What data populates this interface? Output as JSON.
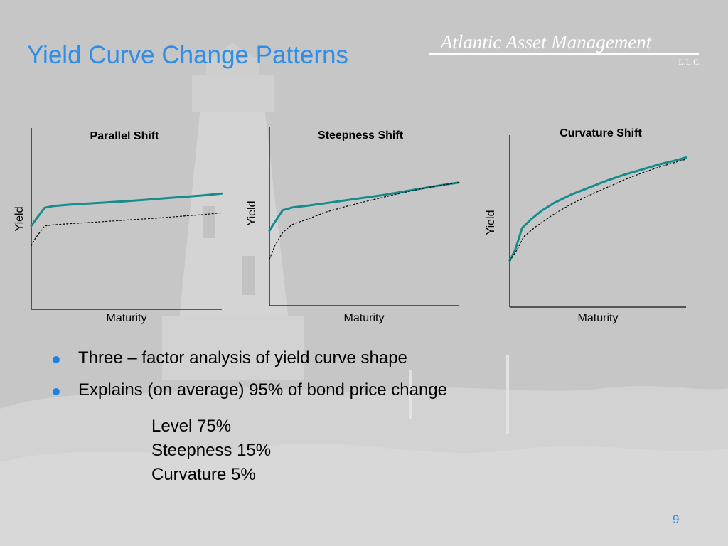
{
  "slide": {
    "title": "Yield Curve Change Patterns",
    "page_number": "9",
    "accent_color": "#2f8ee8"
  },
  "logo": {
    "name": "Atlantic Asset Management",
    "suffix": "L.L.C."
  },
  "bullets": [
    {
      "text": "Three – factor analysis of yield curve shape",
      "icon": "bullet-dot-icon"
    },
    {
      "text": "Explains (on average) 95% of bond price change",
      "icon": "bullet-dot-icon"
    }
  ],
  "sub_items": [
    {
      "text": "Level 75%"
    },
    {
      "text": "Steepness 15%"
    },
    {
      "text": "Curvature 5%"
    }
  ],
  "chart_data": [
    {
      "type": "line",
      "title": "Parallel Shift",
      "xlabel": "Maturity",
      "ylabel": "Yield",
      "grid": false,
      "ylim": [
        0,
        100
      ],
      "series": [
        {
          "style": "solid",
          "color": "#168c8c",
          "values": [
            [
              0,
              46
            ],
            [
              2,
              49
            ],
            [
              7,
              56
            ],
            [
              12,
              57
            ],
            [
              20,
              57.7
            ],
            [
              30,
              58.3
            ],
            [
              40,
              59
            ],
            [
              50,
              59.6
            ],
            [
              60,
              60.4
            ],
            [
              70,
              61.2
            ],
            [
              80,
              62
            ],
            [
              90,
              62.8
            ],
            [
              100,
              63.8
            ]
          ]
        },
        {
          "style": "dotted",
          "color": "#000000",
          "values": [
            [
              0,
              35
            ],
            [
              2,
              39
            ],
            [
              7,
              46
            ],
            [
              12,
              46.6
            ],
            [
              20,
              47.2
            ],
            [
              30,
              47.8
            ],
            [
              40,
              48.5
            ],
            [
              50,
              49.2
            ],
            [
              60,
              49.9
            ],
            [
              70,
              50.6
            ],
            [
              80,
              51.4
            ],
            [
              90,
              52.2
            ],
            [
              100,
              53.2
            ]
          ]
        }
      ]
    },
    {
      "type": "line",
      "title": "Steepness Shift",
      "xlabel": "Maturity",
      "ylabel": "Yield",
      "grid": false,
      "ylim": [
        0,
        100
      ],
      "series": [
        {
          "style": "solid",
          "color": "#168c8c",
          "values": [
            [
              0,
              42
            ],
            [
              2,
              45.5
            ],
            [
              7,
              53.5
            ],
            [
              12,
              55
            ],
            [
              20,
              56
            ],
            [
              30,
              57.5
            ],
            [
              40,
              59
            ],
            [
              50,
              60.5
            ],
            [
              60,
              62
            ],
            [
              70,
              63.8
            ],
            [
              80,
              65.6
            ],
            [
              90,
              67.4
            ],
            [
              100,
              69
            ]
          ]
        },
        {
          "style": "dotted",
          "color": "#000000",
          "values": [
            [
              0,
              26
            ],
            [
              3,
              34
            ],
            [
              7,
              41
            ],
            [
              12,
              45.5
            ],
            [
              20,
              48.5
            ],
            [
              30,
              52.5
            ],
            [
              40,
              55.5
            ],
            [
              50,
              58.2
            ],
            [
              60,
              60.7
            ],
            [
              70,
              63.2
            ],
            [
              80,
              65.5
            ],
            [
              90,
              67.4
            ],
            [
              100,
              69
            ]
          ]
        }
      ]
    },
    {
      "type": "line",
      "title": "Curvature Shift",
      "xlabel": "Maturity",
      "ylabel": "Yield",
      "grid": false,
      "ylim": [
        0,
        100
      ],
      "series": [
        {
          "style": "solid",
          "color": "#168c8c",
          "values": [
            [
              0,
              27
            ],
            [
              3,
              33
            ],
            [
              7,
              46
            ],
            [
              12,
              51
            ],
            [
              18,
              56
            ],
            [
              25,
              60.5
            ],
            [
              35,
              65.5
            ],
            [
              45,
              69.5
            ],
            [
              55,
              73.5
            ],
            [
              65,
              77
            ],
            [
              75,
              80
            ],
            [
              85,
              83
            ],
            [
              95,
              85.5
            ],
            [
              100,
              87
            ]
          ]
        },
        {
          "style": "dotted",
          "color": "#000000",
          "values": [
            [
              0,
              27
            ],
            [
              4,
              33
            ],
            [
              8,
              41
            ],
            [
              15,
              47
            ],
            [
              25,
              54
            ],
            [
              35,
              60
            ],
            [
              45,
              65
            ],
            [
              55,
              69.5
            ],
            [
              65,
              74
            ],
            [
              75,
              78
            ],
            [
              85,
              81.5
            ],
            [
              95,
              84.5
            ],
            [
              100,
              86
            ]
          ]
        }
      ]
    }
  ]
}
